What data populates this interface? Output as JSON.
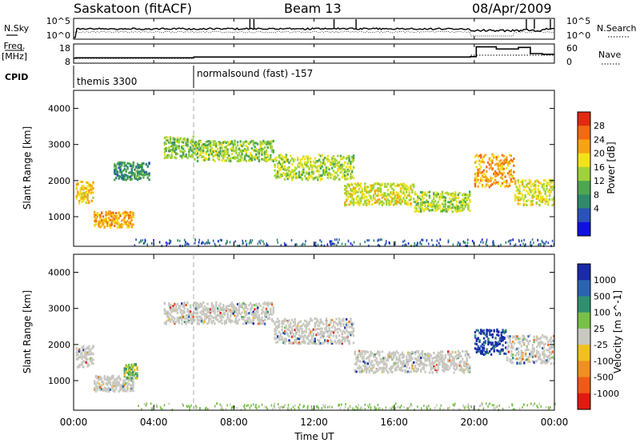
{
  "header": {
    "station": "Saskatoon (fitACF)",
    "beam": "Beam 13",
    "date": "08/Apr/2009"
  },
  "noise_panel": {
    "left_label": "N.Sky",
    "right_label": "N.Search",
    "left_ticks": [
      "10^5",
      "10^0"
    ],
    "right_ticks": [
      "10^5",
      "10^0"
    ]
  },
  "freq_panel": {
    "left_label_line1": "Freq.",
    "left_label_line2": "[MHz]",
    "right_label": "Nave",
    "left_ticks": [
      "18",
      "8"
    ],
    "right_ticks": [
      "60",
      "0"
    ]
  },
  "cpid": {
    "label": "CPID",
    "modes": [
      "themis 3300",
      "normalsound (fast) -157"
    ]
  },
  "colorbars": {
    "power": {
      "label": "Power [dB]",
      "ticks": [
        "28",
        "24",
        "20",
        "16",
        "12",
        "8",
        "4"
      ],
      "colors": [
        "#1010e0",
        "#2a52b8",
        "#2e8a6a",
        "#4ea650",
        "#9fd23a",
        "#f2e21a",
        "#f7a414",
        "#f26a12",
        "#e22a10"
      ]
    },
    "velocity": {
      "label": "Velocity [m s^-1]",
      "ticks": [
        "1000",
        "500",
        "100",
        "25",
        "-25",
        "-100",
        "-500",
        "-1000"
      ],
      "colors": [
        "#1a2aa8",
        "#2a64b0",
        "#2f8f6e",
        "#78c048",
        "#c8c8c0",
        "#f0c020",
        "#f09020",
        "#f05a18",
        "#e01a10"
      ]
    }
  },
  "x_axis": {
    "label": "Time UT",
    "ticks": [
      "00:00",
      "04:00",
      "08:00",
      "12:00",
      "16:00",
      "20:00",
      "00:00"
    ]
  },
  "chart_data": [
    {
      "type": "heatmap",
      "title": "Saskatoon (fitACF)  Beam 13  08/Apr/2009",
      "quantity": "Power",
      "xlabel": "Time UT",
      "ylabel": "Slant Range [km]",
      "xlim_hours": [
        0,
        24
      ],
      "ylim_km": [
        180,
        4500
      ],
      "y_ticks": [
        1000,
        2000,
        3000,
        4000
      ],
      "colorbar_label": "Power [dB]",
      "colorbar_ticks": [
        28,
        24,
        20,
        16,
        12,
        8,
        4
      ],
      "grid": false,
      "mode_change_hour": 6,
      "echo_regions": [
        {
          "t_start": 0.1,
          "t_end": 1.0,
          "r_center": 1700,
          "r_halfwidth": 300,
          "power_db": 20
        },
        {
          "t_start": 1.0,
          "t_end": 3.0,
          "r_center": 950,
          "r_halfwidth": 220,
          "power_db": 22
        },
        {
          "t_start": 2.0,
          "t_end": 3.8,
          "r_center": 2300,
          "r_halfwidth": 250,
          "power_db": 10
        },
        {
          "t_start": 4.5,
          "t_end": 6.0,
          "r_center": 2950,
          "r_halfwidth": 300,
          "power_db": 14
        },
        {
          "t_start": 6.0,
          "t_end": 10.0,
          "r_center": 2850,
          "r_halfwidth": 280,
          "power_db": 15
        },
        {
          "t_start": 10.0,
          "t_end": 14.0,
          "r_center": 2400,
          "r_halfwidth": 350,
          "power_db": 16
        },
        {
          "t_start": 13.5,
          "t_end": 17.0,
          "r_center": 1650,
          "r_halfwidth": 300,
          "power_db": 18
        },
        {
          "t_start": 17.0,
          "t_end": 19.8,
          "r_center": 1450,
          "r_halfwidth": 280,
          "power_db": 16
        },
        {
          "t_start": 20.0,
          "t_end": 22.0,
          "r_center": 2300,
          "r_halfwidth": 450,
          "power_db": 22
        },
        {
          "t_start": 22.0,
          "t_end": 24.0,
          "r_center": 1700,
          "r_halfwidth": 350,
          "power_db": 18
        }
      ]
    },
    {
      "type": "heatmap",
      "quantity": "Velocity",
      "xlabel": "Time UT",
      "ylabel": "Slant Range [km]",
      "xlim_hours": [
        0,
        24
      ],
      "ylim_km": [
        180,
        4500
      ],
      "y_ticks": [
        1000,
        2000,
        3000,
        4000
      ],
      "colorbar_label": "Velocity [m s^-1]",
      "colorbar_ticks": [
        1000,
        500,
        100,
        25,
        -25,
        -100,
        -500,
        -1000
      ],
      "grid": false,
      "mode_change_hour": 6,
      "echo_regions": [
        {
          "t_start": 0.1,
          "t_end": 1.0,
          "r_center": 1700,
          "r_halfwidth": 300,
          "velocity_ms": 0
        },
        {
          "t_start": 1.0,
          "t_end": 3.0,
          "r_center": 950,
          "r_halfwidth": 220,
          "velocity_ms": 0
        },
        {
          "t_start": 2.5,
          "t_end": 3.2,
          "r_center": 1300,
          "r_halfwidth": 200,
          "velocity_ms": 150
        },
        {
          "t_start": 4.5,
          "t_end": 10.0,
          "r_center": 2900,
          "r_halfwidth": 300,
          "velocity_ms": 0
        },
        {
          "t_start": 10.0,
          "t_end": 14.0,
          "r_center": 2400,
          "r_halfwidth": 350,
          "velocity_ms": 0
        },
        {
          "t_start": 14.0,
          "t_end": 19.8,
          "r_center": 1550,
          "r_halfwidth": 300,
          "velocity_ms": 0
        },
        {
          "t_start": 20.0,
          "t_end": 21.6,
          "r_center": 2100,
          "r_halfwidth": 350,
          "velocity_ms": 500
        },
        {
          "t_start": 21.6,
          "t_end": 24.0,
          "r_center": 1900,
          "r_halfwidth": 400,
          "velocity_ms": 0
        }
      ]
    }
  ]
}
